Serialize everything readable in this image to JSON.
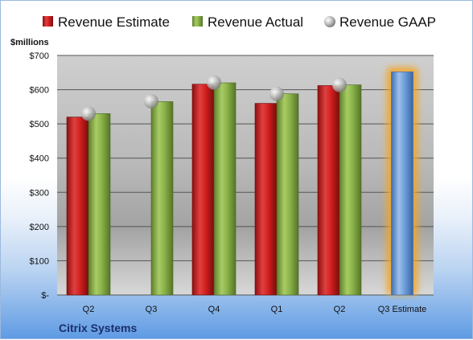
{
  "chart_data": {
    "type": "bar",
    "title": "",
    "company": "Citrix Systems",
    "ylabel": "$millions",
    "categories": [
      "Q2",
      "Q3",
      "Q4",
      "Q1",
      "Q2",
      "Q3 Estimate"
    ],
    "ylim": [
      0,
      700
    ],
    "yticks": [
      0,
      100,
      200,
      300,
      400,
      500,
      600,
      700
    ],
    "ytick_labels": [
      "$-",
      "$100",
      "$200",
      "$300",
      "$400",
      "$500",
      "$600",
      "$700"
    ],
    "grid": true,
    "legend_position": "top",
    "series": [
      {
        "name": "Revenue Estimate",
        "color": "#d42020",
        "values": [
          520,
          null,
          616,
          560,
          612,
          652
        ]
      },
      {
        "name": "Revenue Actual",
        "color": "#8cb44a",
        "values": [
          530,
          565,
          620,
          588,
          614,
          null
        ]
      },
      {
        "name": "Revenue GAAP",
        "color": "#b8b8b8",
        "marker": "sphere",
        "values": [
          530,
          566,
          621,
          588,
          614,
          null
        ]
      }
    ],
    "highlight": {
      "category_index": 5,
      "bar_color": "#6f9fd8",
      "glow_color": "#f5a623"
    }
  }
}
